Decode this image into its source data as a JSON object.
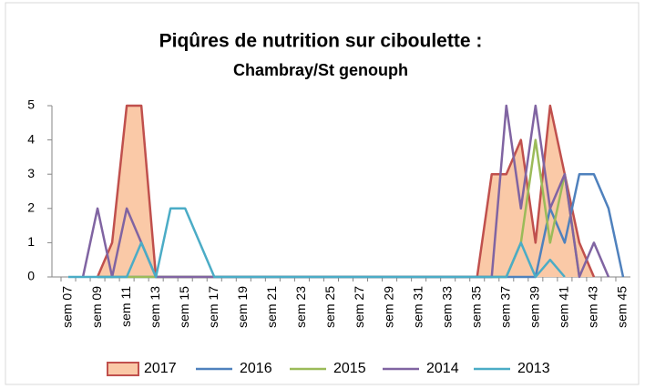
{
  "chart_data": {
    "type": "line",
    "title": [
      "Piqûres de nutrition sur ciboulette :",
      "Chambray/St genouph"
    ],
    "categories": [
      "sem 07",
      null,
      "sem 09",
      null,
      "sem 11",
      null,
      "sem 13",
      null,
      "sem 15",
      null,
      "sem 17",
      null,
      "sem 19",
      null,
      "sem 21",
      null,
      "sem 23",
      null,
      "sem 25",
      null,
      "sem 27",
      null,
      "sem 29",
      null,
      "sem 31",
      null,
      "sem 33",
      null,
      "sem 35",
      null,
      "sem 37",
      null,
      "sem 39",
      null,
      "sem 41",
      null,
      "sem 43",
      null,
      "sem 45"
    ],
    "ylim": [
      0,
      5
    ],
    "yticks": [
      0,
      1,
      2,
      3,
      4,
      5
    ],
    "grid": false,
    "legend": "bottom",
    "series": [
      {
        "name": "2017",
        "color": "#c0504d",
        "fill": "#fac9a7",
        "area": true,
        "values": [
          null,
          null,
          0,
          1,
          5,
          5,
          0,
          0,
          0,
          0,
          0,
          0,
          0,
          0,
          0,
          0,
          0,
          0,
          0,
          0,
          0,
          0,
          0,
          0,
          0,
          0,
          0,
          0,
          0,
          3,
          3,
          4,
          1,
          5,
          3,
          1,
          0,
          null,
          null
        ]
      },
      {
        "name": "2016",
        "color": "#4f81bd",
        "values": [
          null,
          null,
          0,
          0,
          0,
          0,
          0,
          0,
          0,
          0,
          0,
          0,
          0,
          0,
          0,
          0,
          0,
          0,
          0,
          0,
          0,
          0,
          0,
          0,
          0,
          0,
          0,
          0,
          0,
          0,
          0,
          0,
          0,
          2,
          1,
          3,
          3,
          2,
          0
        ]
      },
      {
        "name": "2015",
        "color": "#9bbb59",
        "values": [
          null,
          null,
          0,
          0,
          0,
          0,
          0,
          0,
          0,
          0,
          0,
          0,
          0,
          0,
          0,
          0,
          0,
          0,
          0,
          0,
          0,
          0,
          0,
          0,
          0,
          0,
          0,
          0,
          0,
          0,
          0,
          1,
          4,
          1,
          3,
          0,
          null,
          null,
          null
        ]
      },
      {
        "name": "2014",
        "color": "#8064a2",
        "values": [
          null,
          0,
          2,
          0,
          2,
          1,
          0,
          0,
          0,
          0,
          0,
          0,
          0,
          0,
          0,
          0,
          0,
          0,
          0,
          0,
          0,
          0,
          0,
          0,
          0,
          0,
          0,
          0,
          0,
          0,
          5,
          2,
          5,
          2,
          3,
          0,
          1,
          0,
          null
        ]
      },
      {
        "name": "2013",
        "color": "#4bacc6",
        "values": [
          0,
          0,
          0,
          0,
          0,
          1,
          0,
          2,
          2,
          1,
          0,
          0,
          0,
          0,
          0,
          0,
          0,
          0,
          0,
          0,
          0,
          0,
          0,
          0,
          0,
          0,
          0,
          0,
          0,
          0,
          0,
          1,
          0,
          0.5,
          0,
          null,
          null,
          null,
          null
        ]
      }
    ]
  }
}
